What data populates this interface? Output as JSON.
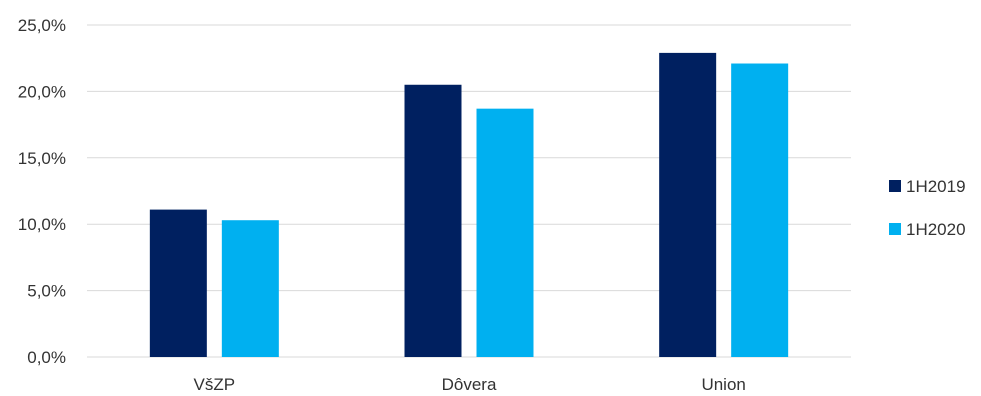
{
  "chart_data": {
    "type": "bar",
    "title": "",
    "xlabel": "",
    "ylabel": "",
    "categories": [
      "VšZP",
      "Dôvera",
      "Union"
    ],
    "series": [
      {
        "name": "1H2019",
        "values": [
          11.1,
          20.5,
          22.9
        ],
        "color": "#002060"
      },
      {
        "name": "1H2020",
        "values": [
          10.3,
          18.7,
          22.1
        ],
        "color": "#00b0f0"
      }
    ],
    "ylim": [
      0,
      25
    ],
    "yticks": [
      0,
      5,
      10,
      15,
      20,
      25
    ],
    "ytick_labels": [
      "0,0%",
      "5,0%",
      "10,0%",
      "15,0%",
      "20,0%",
      "25,0%"
    ],
    "grid": true,
    "legend_position": "right"
  }
}
